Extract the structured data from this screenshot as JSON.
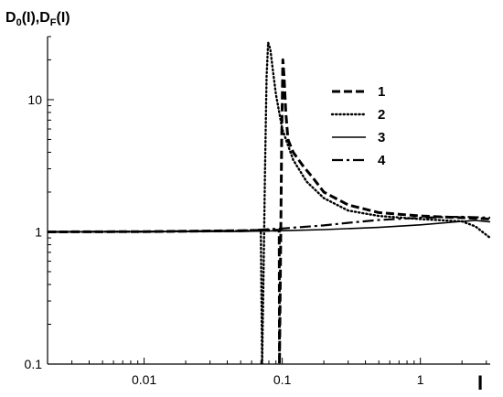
{
  "chart_data": {
    "type": "line",
    "title": "",
    "ylabel": "D0(I),DF(I)",
    "ylabel_parts": {
      "a_main": "D",
      "a_sub": "0",
      "a_arg": "(I),",
      "b_main": "D",
      "b_sub": "F",
      "b_arg": "(I)"
    },
    "xlabel": "I",
    "x_scale": "log",
    "y_scale": "log",
    "xlim": [
      0.002,
      3.2
    ],
    "ylim": [
      0.1,
      30
    ],
    "x_ticks": [
      {
        "value": 0.01,
        "label": "0.01"
      },
      {
        "value": 0.1,
        "label": "0.1"
      },
      {
        "value": 1,
        "label": "1"
      }
    ],
    "y_ticks": [
      {
        "value": 0.1,
        "label": "0.1"
      },
      {
        "value": 1,
        "label": "1"
      },
      {
        "value": 10,
        "label": "10"
      }
    ],
    "grid": false,
    "legend_position": "upper-right",
    "series": [
      {
        "name": "1",
        "style": "dashed",
        "color": "#000000",
        "x": [
          0.002,
          0.01,
          0.05,
          0.095,
          0.0955,
          0.097,
          0.099,
          0.101,
          0.103,
          0.106,
          0.11,
          0.12,
          0.14,
          0.17,
          0.2,
          0.3,
          0.5,
          1.0,
          2.0,
          3.2
        ],
        "y": [
          1.0,
          1.005,
          1.02,
          1.03,
          0.1,
          0.5,
          5.0,
          20.0,
          15.0,
          8.0,
          5.0,
          4.0,
          3.2,
          2.5,
          2.0,
          1.6,
          1.4,
          1.32,
          1.28,
          1.25
        ]
      },
      {
        "name": "2",
        "style": "dotted",
        "color": "#000000",
        "x": [
          0.002,
          0.01,
          0.05,
          0.07,
          0.0715,
          0.073,
          0.075,
          0.077,
          0.079,
          0.082,
          0.086,
          0.09,
          0.1,
          0.12,
          0.15,
          0.2,
          0.3,
          0.5,
          1.0,
          2.0,
          2.5,
          3.2
        ],
        "y": [
          1.0,
          1.005,
          1.015,
          1.02,
          0.1,
          0.4,
          3.0,
          15.0,
          27.0,
          24.0,
          16.0,
          11.0,
          6.0,
          3.5,
          2.4,
          1.8,
          1.45,
          1.32,
          1.25,
          1.2,
          1.1,
          0.9
        ]
      },
      {
        "name": "3",
        "style": "solid",
        "color": "#000000",
        "x": [
          0.002,
          0.01,
          0.05,
          0.1,
          0.2,
          0.5,
          1.0,
          2.0,
          2.5,
          3.2
        ],
        "y": [
          1.0,
          1.003,
          1.01,
          1.02,
          1.04,
          1.08,
          1.13,
          1.2,
          1.22,
          1.19
        ]
      },
      {
        "name": "4",
        "style": "dashdot",
        "color": "#000000",
        "x": [
          0.002,
          0.01,
          0.05,
          0.1,
          0.2,
          0.3,
          0.5,
          1.0,
          2.0,
          3.2
        ],
        "y": [
          1.0,
          1.005,
          1.02,
          1.06,
          1.12,
          1.17,
          1.23,
          1.28,
          1.3,
          1.28
        ]
      }
    ]
  }
}
